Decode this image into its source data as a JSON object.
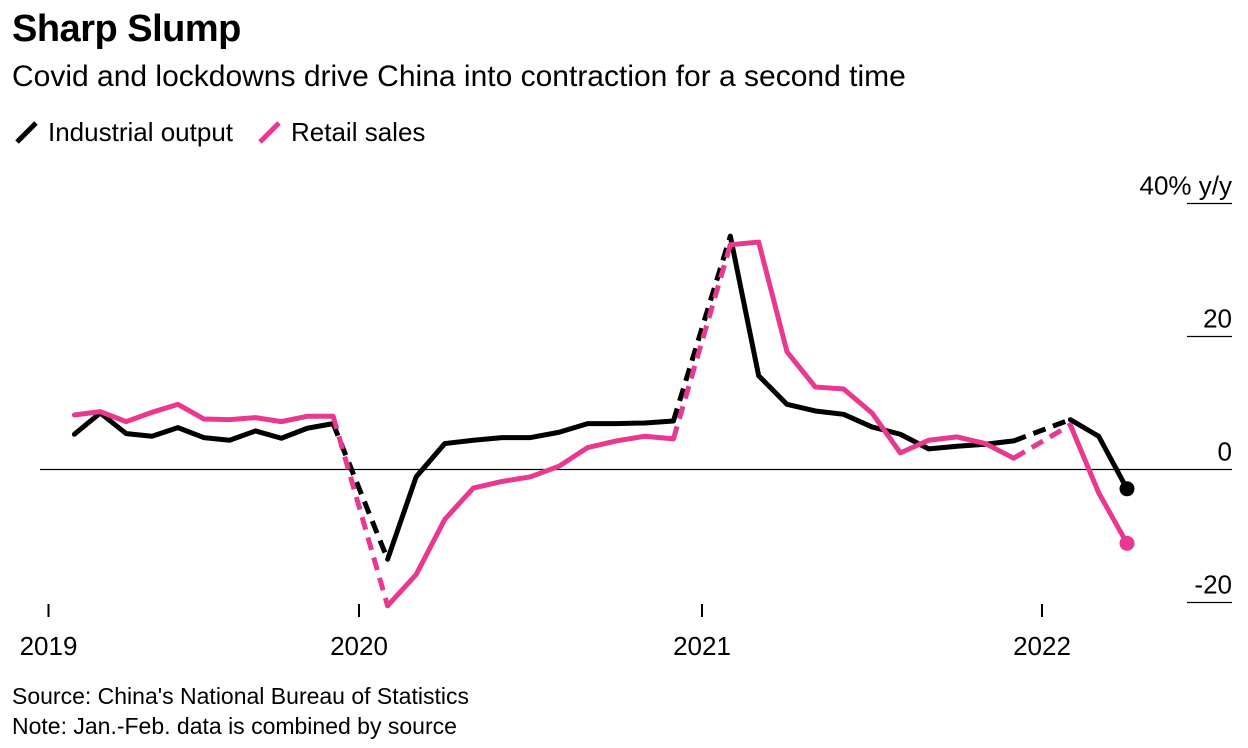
{
  "header": {
    "title": "Sharp Slump",
    "subtitle": "Covid and lockdowns drive China into contraction for a second time"
  },
  "legend": [
    {
      "label": "Industrial output",
      "color": "#000000",
      "icon": "line-swatch-icon"
    },
    {
      "label": "Retail sales",
      "color": "#e8388f",
      "icon": "line-swatch-icon"
    }
  ],
  "footer": {
    "source": "Source: China's National Bureau of Statistics",
    "note": "Note: Jan.-Feb. data is combined by source"
  },
  "chart_data": {
    "type": "line",
    "x": [
      "2019-02",
      "2019-03",
      "2019-04",
      "2019-05",
      "2019-06",
      "2019-07",
      "2019-08",
      "2019-09",
      "2019-10",
      "2019-11",
      "2019-12",
      "2020-02",
      "2020-03",
      "2020-04",
      "2020-05",
      "2020-06",
      "2020-07",
      "2020-08",
      "2020-09",
      "2020-10",
      "2020-11",
      "2020-12",
      "2021-02",
      "2021-03",
      "2021-04",
      "2021-05",
      "2021-06",
      "2021-07",
      "2021-08",
      "2021-09",
      "2021-10",
      "2021-11",
      "2021-12",
      "2022-02",
      "2022-03",
      "2022-04"
    ],
    "series": [
      {
        "name": "Industrial output",
        "color": "#000000",
        "values": [
          5.3,
          8.5,
          5.4,
          5.0,
          6.3,
          4.8,
          4.4,
          5.8,
          4.7,
          6.2,
          6.9,
          -13.5,
          -1.1,
          3.9,
          4.4,
          4.8,
          4.8,
          5.6,
          6.9,
          6.9,
          7.0,
          7.3,
          35.1,
          14.1,
          9.8,
          8.8,
          8.3,
          6.4,
          5.3,
          3.1,
          3.5,
          3.8,
          4.3,
          7.5,
          5.0,
          -2.9
        ],
        "dashed_segments": [
          [
            10,
            11
          ],
          [
            21,
            22
          ],
          [
            32,
            33
          ]
        ],
        "end_marker": true
      },
      {
        "name": "Retail sales",
        "color": "#e8388f",
        "values": [
          8.2,
          8.7,
          7.2,
          8.6,
          9.8,
          7.6,
          7.5,
          7.8,
          7.2,
          8.0,
          8.0,
          -20.5,
          -15.8,
          -7.5,
          -2.8,
          -1.8,
          -1.1,
          0.5,
          3.3,
          4.3,
          5.0,
          4.6,
          33.8,
          34.2,
          17.7,
          12.4,
          12.1,
          8.5,
          2.5,
          4.4,
          4.9,
          3.9,
          1.7,
          6.7,
          -3.5,
          -11.1
        ],
        "dashed_segments": [
          [
            10,
            11
          ],
          [
            21,
            22
          ],
          [
            32,
            33
          ]
        ],
        "end_marker": true
      }
    ],
    "x_ticks": [
      "2019",
      "2020",
      "2021",
      "2022"
    ],
    "y_ticks": [
      {
        "value": 40,
        "label": "40% y/y"
      },
      {
        "value": 20,
        "label": "20"
      },
      {
        "value": 0,
        "label": "0"
      },
      {
        "value": -20,
        "label": "-20"
      }
    ],
    "ylim": [
      -20,
      40
    ],
    "zero_line": true,
    "legend_position": "top-left",
    "grid": false
  }
}
